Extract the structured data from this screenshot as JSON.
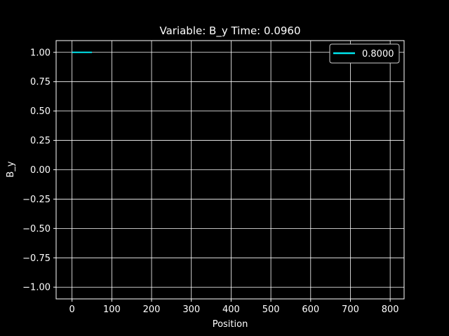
{
  "chart_data": {
    "type": "line",
    "title": "Variable: B_y Time: 0.0960",
    "xlabel": "Position",
    "ylabel": "B_y",
    "xlim": [
      -40,
      835
    ],
    "ylim": [
      -1.1,
      1.1
    ],
    "xticks": [
      0,
      100,
      200,
      300,
      400,
      500,
      600,
      700,
      800
    ],
    "xtick_labels": [
      "0",
      "100",
      "200",
      "300",
      "400",
      "500",
      "600",
      "700",
      "800"
    ],
    "yticks": [
      1.0,
      0.75,
      0.5,
      0.25,
      0.0,
      -0.25,
      -0.5,
      -0.75,
      -1.0
    ],
    "ytick_labels": [
      "1.00",
      "0.75",
      "0.50",
      "0.25",
      "0.00",
      "−0.25",
      "−0.50",
      "−0.75",
      "−1.00"
    ],
    "grid": true,
    "legend_position": "top-right",
    "background": "#000000",
    "foreground": "#ffffff",
    "series": [
      {
        "name": "0.8000",
        "color": "#00e5ee",
        "x": [
          0,
          50
        ],
        "y": [
          1.0,
          1.0
        ]
      }
    ]
  }
}
